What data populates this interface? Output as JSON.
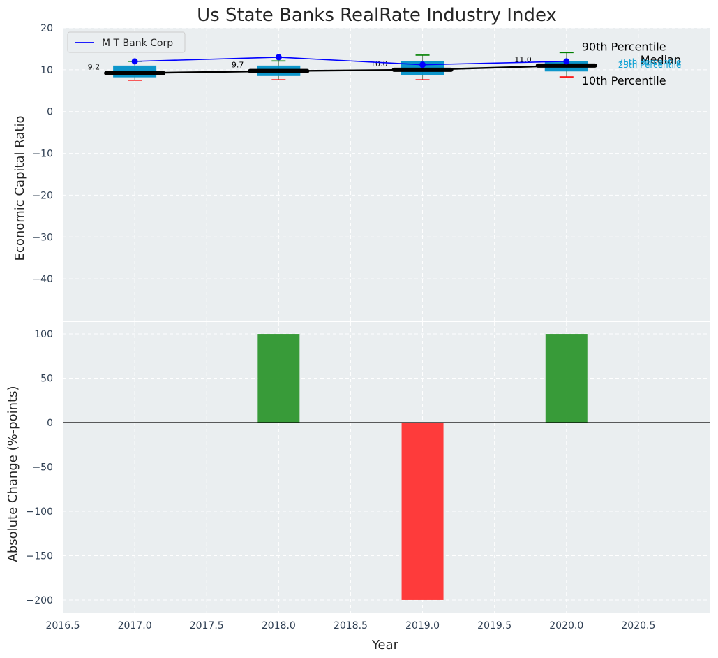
{
  "chart_data": [
    {
      "type": "box-line",
      "title": "Us State Banks RealRate Industry Index",
      "xlabel": "",
      "ylabel": "Economic Capital Ratio",
      "ylim": [
        -50,
        20
      ],
      "yticks": [
        20,
        10,
        0,
        -10,
        -20,
        -30,
        -40
      ],
      "ytick_labels": [
        "20",
        "10",
        "0",
        "−10",
        "−20",
        "−30",
        "−40"
      ],
      "xlim": [
        2016.5,
        2021.0
      ],
      "years": [
        2017,
        2018,
        2019,
        2020
      ],
      "boxes": [
        {
          "year": 2017,
          "p10": 7.5,
          "q1": 8.2,
          "median": 9.2,
          "q3": 11.0,
          "p90": 12.0,
          "median_label": "9.2"
        },
        {
          "year": 2018,
          "p10": 7.6,
          "q1": 8.5,
          "median": 9.7,
          "q3": 11.0,
          "p90": 12.1,
          "median_label": "9.7"
        },
        {
          "year": 2019,
          "p10": 7.6,
          "q1": 8.8,
          "median": 10.0,
          "q3": 12.0,
          "p90": 13.5,
          "median_label": "10.0"
        },
        {
          "year": 2020,
          "p10": 8.3,
          "q1": 9.6,
          "median": 11.0,
          "q3": 12.0,
          "p90": 14.1,
          "median_label": "11.0"
        }
      ],
      "series": [
        {
          "name": "M T Bank Corp",
          "color": "#0000ff",
          "values": [
            12.0,
            13.0,
            11.2,
            12.0
          ]
        }
      ],
      "median_line_color": "#000000",
      "box_color": "#0090c8",
      "p90_color": "#008000",
      "p10_color": "#ff0000",
      "legend": {
        "label": "M T Bank Corp",
        "position": "top-left"
      },
      "annotations": {
        "p90": "90th Percentile",
        "median": "Median",
        "p10": "10th Percentile",
        "q3": "75th Percentile",
        "q1": "25th Percentile"
      }
    },
    {
      "type": "bar",
      "xlabel": "Year",
      "ylabel": "Absolute Change (%-points)",
      "ylim": [
        -215,
        115
      ],
      "yticks": [
        100,
        50,
        0,
        -50,
        -100,
        -150,
        -200
      ],
      "ytick_labels": [
        "100",
        "50",
        "0",
        "−50",
        "−100",
        "−150",
        "−200"
      ],
      "xlim": [
        2016.5,
        2021.0
      ],
      "xticks": [
        2016.5,
        2017.0,
        2017.5,
        2018.0,
        2018.5,
        2019.0,
        2019.5,
        2020.0,
        2020.5
      ],
      "xtick_labels": [
        "2016.5",
        "2017.0",
        "2017.5",
        "2018.0",
        "2018.5",
        "2019.0",
        "2019.5",
        "2020.0",
        "2020.5"
      ],
      "categories": [
        2018,
        2019,
        2020
      ],
      "values": [
        100,
        -200,
        100
      ],
      "positive_color": "#2e962e",
      "negative_color": "#ff3030"
    }
  ]
}
